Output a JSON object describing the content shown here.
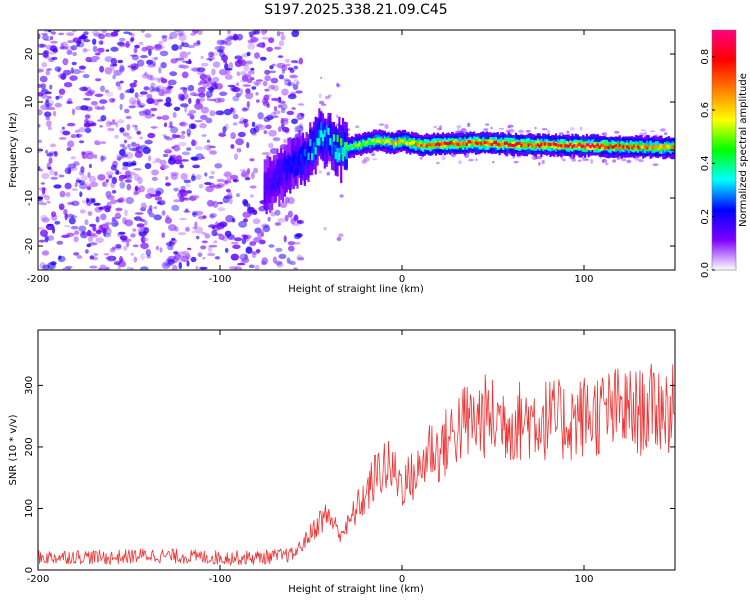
{
  "title": "S197.2025.338.21.09.C45",
  "chart_data": [
    {
      "type": "heatmap",
      "xlabel": "Height of straight line (km)",
      "ylabel": "Frequency (Hz)",
      "xlim": [
        -200,
        150
      ],
      "ylim": [
        -25,
        25
      ],
      "xticks": [
        -200,
        -100,
        0,
        100
      ],
      "xtick_labels": [
        "-200",
        "-100",
        "0",
        "100"
      ],
      "yticks": [
        -20,
        -10,
        0,
        10,
        20
      ],
      "ytick_labels": [
        "-20",
        "-10",
        "0",
        "10",
        "20"
      ],
      "colorbar": {
        "label": "Normalized spectral amplitude",
        "range": [
          0,
          0.9
        ],
        "ticks": [
          0,
          0.2,
          0.4,
          0.6,
          0.8
        ],
        "tick_labels": [
          "0.0",
          "0.2",
          "0.4",
          "0.6",
          "0.8"
        ],
        "stops": [
          "#ffffff",
          "#7f00ff",
          "#0000ff",
          "#00ffff",
          "#00ff00",
          "#ffff00",
          "#ff8000",
          "#ff0000",
          "#ff0080"
        ]
      },
      "signal_band": {
        "x": [
          -75,
          -65,
          -55,
          -45,
          -40,
          -35,
          -25,
          -15,
          -5,
          0,
          10,
          20,
          40,
          60,
          80,
          100,
          120,
          150
        ],
        "frequency": [
          -8,
          -4,
          -2,
          3,
          2,
          0,
          1,
          2,
          1.5,
          1.8,
          1,
          1.2,
          1.5,
          1.2,
          1.0,
          0.9,
          0.7,
          0.5
        ],
        "amplitude": [
          0.15,
          0.2,
          0.25,
          0.35,
          0.3,
          0.4,
          0.5,
          0.55,
          0.6,
          0.6,
          0.7,
          0.75,
          0.75,
          0.78,
          0.72,
          0.82,
          0.7,
          0.65
        ]
      }
    },
    {
      "type": "line",
      "xlabel": "Height of straight line (km)",
      "ylabel": "SNR (10 * v/v)",
      "xlim": [
        -200,
        150
      ],
      "ylim": [
        0,
        390
      ],
      "xticks": [
        -200,
        -100,
        0,
        100
      ],
      "xtick_labels": [
        "-200",
        "-100",
        "0",
        "100"
      ],
      "yticks": [
        0,
        100,
        200,
        300
      ],
      "ytick_labels": [
        "0",
        "100",
        "200",
        "300"
      ],
      "line_color": "#ee3333",
      "series": [
        {
          "name": "SNR",
          "x": [
            -200,
            -180,
            -160,
            -140,
            -120,
            -100,
            -80,
            -70,
            -60,
            -55,
            -50,
            -45,
            -40,
            -35,
            -30,
            -25,
            -20,
            -15,
            -10,
            -5,
            0,
            5,
            10,
            15,
            20,
            25,
            30,
            35,
            40,
            45,
            50,
            55,
            60,
            70,
            80,
            90,
            100,
            110,
            120,
            130,
            140,
            150
          ],
          "y": [
            20,
            22,
            20,
            24,
            22,
            20,
            20,
            22,
            25,
            40,
            60,
            80,
            90,
            60,
            70,
            100,
            120,
            150,
            170,
            160,
            140,
            150,
            160,
            200,
            190,
            210,
            230,
            240,
            240,
            250,
            245,
            245,
            240,
            245,
            245,
            240,
            250,
            255,
            260,
            255,
            265,
            260
          ]
        }
      ]
    }
  ]
}
